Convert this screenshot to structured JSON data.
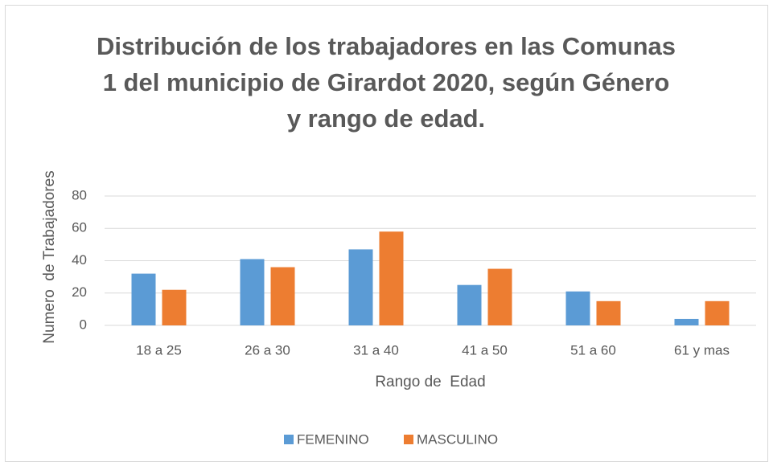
{
  "chart_data": {
    "type": "bar",
    "title": [
      "Distribución de los trabajadores en las Comunas",
      "1 del municipio de Girardot 2020, según Género",
      "y rango de edad."
    ],
    "xlabel": "Rango de  Edad",
    "ylabel": "Numero  de Trabajadores",
    "categories": [
      "18 a 25",
      "26 a 30",
      "31 a 40",
      "41 a 50",
      "51 a 60",
      "61 y mas"
    ],
    "series": [
      {
        "name": "FEMENINO",
        "color": "#5b9bd5",
        "values": [
          32,
          41,
          47,
          25,
          21,
          4
        ]
      },
      {
        "name": "MASCULINO",
        "color": "#ed7d31",
        "values": [
          22,
          36,
          58,
          35,
          15,
          15
        ]
      }
    ],
    "ylim": [
      0,
      80
    ],
    "yticks": [
      0,
      20,
      40,
      60,
      80
    ],
    "grid": true,
    "legend": "bottom"
  }
}
